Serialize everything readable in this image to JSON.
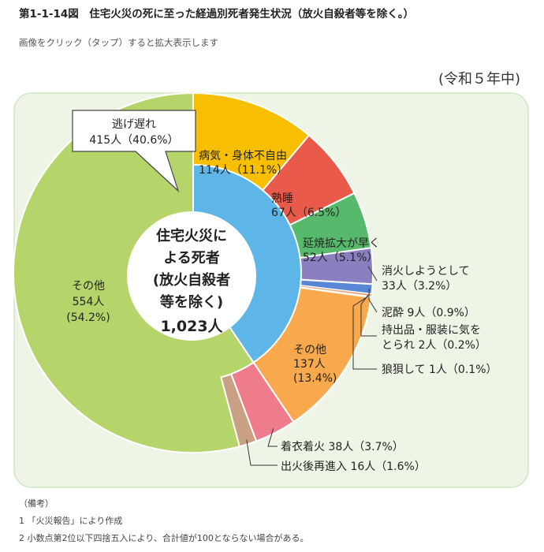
{
  "header": {
    "figure_title": "第1-1-14図　住宅火災の死に至った経過別死者発生状況（放火自殺者等を除く。）",
    "click_note": "画像をクリック（タップ）すると拡大表示します"
  },
  "chart_data": {
    "type": "pie",
    "period_label": "(令和５年中)",
    "center_label": [
      "住宅火災に",
      "よる死者",
      "(放火自殺者",
      "等を除く)",
      "1,023人"
    ],
    "total": 1023,
    "inner_ring": [
      {
        "name": "逃げ遅れ",
        "value": 415,
        "percent": "40.6%",
        "label": [
          "逃げ遅れ",
          "415人（40.6%）"
        ],
        "color": "#5db5e8"
      },
      {
        "name": "その他",
        "value": 554,
        "percent": "54.2%",
        "label": [
          "その他",
          "554人",
          "(54.2%)"
        ],
        "color": "#b5d56b"
      }
    ],
    "outer_ring": [
      {
        "name": "病気・身体不自由",
        "value": 114,
        "percent": "11.1%",
        "label": [
          "病気・身体不自由",
          "114人（11.1%）"
        ],
        "color": "#f7bf00"
      },
      {
        "name": "熟睡",
        "value": 67,
        "percent": "6.5%",
        "label": [
          "熟睡",
          "67人（6.5%）"
        ],
        "color": "#ea5a4a"
      },
      {
        "name": "延焼拡大が早く",
        "value": 52,
        "percent": "5.1%",
        "label": [
          "延焼拡大が早く",
          "52人（5.1%）"
        ],
        "color": "#56b96b"
      },
      {
        "name": "消火しようとして",
        "value": 33,
        "percent": "3.2%",
        "label": [
          "消火しようとして",
          "33人（3.2%）"
        ],
        "color": "#8c7fc1"
      },
      {
        "name": "泥酔",
        "value": 9,
        "percent": "0.9%",
        "label": [
          "泥酔 9人（0.9%）"
        ],
        "color": "#5a86d6"
      },
      {
        "name": "持出品・服装に気をとられ",
        "value": 2,
        "percent": "0.2%",
        "label": [
          "持出品・服装に気を",
          "とられ 2人（0.2%）"
        ],
        "color": "#e9a27a"
      },
      {
        "name": "狼狽して",
        "value": 1,
        "percent": "0.1%",
        "label": [
          "狼狽して 1人（0.1%）"
        ],
        "color": "#d8c45a"
      },
      {
        "name": "その他",
        "value": 137,
        "percent": "13.4%",
        "label": [
          "その他",
          "137人",
          "(13.4%)"
        ],
        "color": "#f8a94e"
      },
      {
        "name": "着衣着火",
        "value": 38,
        "percent": "3.7%",
        "label": [
          "着衣着火 38人（3.7%）"
        ],
        "color": "#ee7c8b"
      },
      {
        "name": "出火後再進入",
        "value": 16,
        "percent": "1.6%",
        "label": [
          "出火後再進入 16人（1.6%）"
        ],
        "color": "#c9a083"
      }
    ]
  },
  "notes": {
    "heading": "（備考）",
    "items": [
      "1 「火災報告」により作成",
      "2 小数点第2位以下四捨五入により、合計値が100とならない場合がある。"
    ]
  },
  "colors": {
    "panel_bg": "#eef5e6",
    "panel_border": "#d3e6c3",
    "divider": "#ffffff",
    "leader": "#333333"
  }
}
